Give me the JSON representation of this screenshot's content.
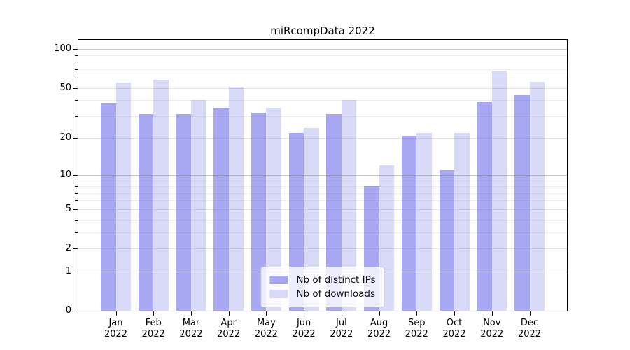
{
  "chart_data": {
    "type": "bar",
    "title": "miRcompData 2022",
    "y_scale": "log1p",
    "categories": [
      "Jan",
      "Feb",
      "Mar",
      "Apr",
      "May",
      "Jun",
      "Jul",
      "Aug",
      "Sep",
      "Oct",
      "Nov",
      "Dec"
    ],
    "year_label": "2022",
    "series": [
      {
        "name": "Nb of distinct IPs",
        "color": "#a7a7f2",
        "values": [
          38,
          31,
          31,
          35,
          32,
          22,
          31,
          8,
          21,
          11,
          39,
          44
        ]
      },
      {
        "name": "Nb of downloads",
        "color": "#d9d9f8",
        "values": [
          55,
          58,
          40,
          51,
          35,
          24,
          40,
          12,
          22,
          22,
          68,
          56
        ]
      }
    ],
    "y_ticks": [
      0,
      1,
      2,
      5,
      10,
      20,
      50,
      100
    ],
    "gridlines": {
      "decade": [
        1,
        10,
        100
      ],
      "sub": [
        2,
        5,
        20,
        50
      ],
      "minor": [
        3,
        4,
        6,
        7,
        8,
        9,
        30,
        40,
        60,
        70,
        80,
        90
      ]
    },
    "ylim": [
      0,
      118
    ],
    "legend_position": "lower center",
    "grid": true,
    "background": "#ffffff",
    "axis_color": "#000000"
  }
}
